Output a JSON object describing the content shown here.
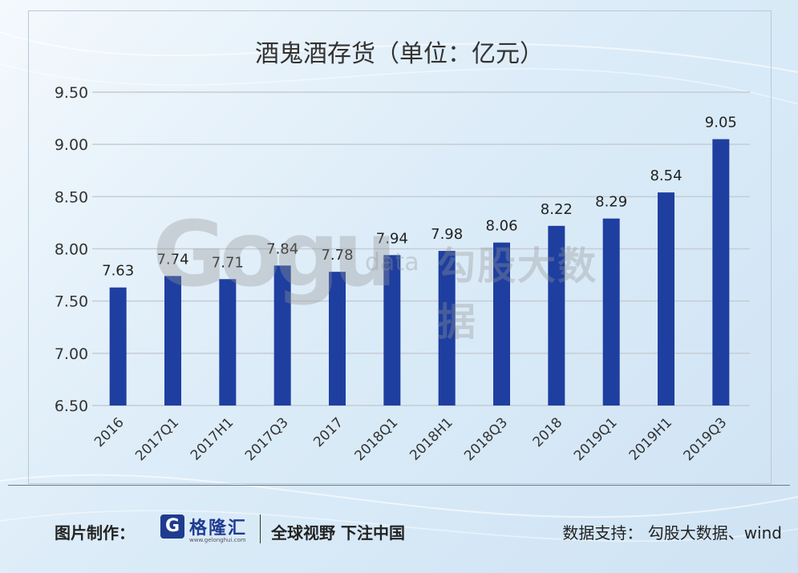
{
  "chart_data": {
    "type": "bar",
    "title": "酒鬼酒存货（单位：亿元）",
    "categories": [
      "2016",
      "2017Q1",
      "2017H1",
      "2017Q3",
      "2017",
      "2018Q1",
      "2018H1",
      "2018Q3",
      "2018",
      "2019Q1",
      "2019H1",
      "2019Q3"
    ],
    "values": [
      7.63,
      7.74,
      7.71,
      7.84,
      7.78,
      7.94,
      7.98,
      8.06,
      8.22,
      8.29,
      8.54,
      9.05
    ],
    "ylim": [
      6.5,
      9.5
    ],
    "yticks": [
      "6.50",
      "7.00",
      "7.50",
      "8.00",
      "8.50",
      "9.00",
      "9.50"
    ],
    "grid": true,
    "bar_color": "#1e3fa0"
  },
  "watermark": {
    "logo": "Gogu",
    "sub": "data",
    "cn": "勾股大数据"
  },
  "footer": {
    "made_by_label": "图片制作：",
    "brand_icon": "G",
    "brand_name": "格隆汇",
    "brand_url": "www.gelonghui.com",
    "slogan": "全球视野 下注中国",
    "source": "数据支持：  勾股大数据、wind"
  }
}
